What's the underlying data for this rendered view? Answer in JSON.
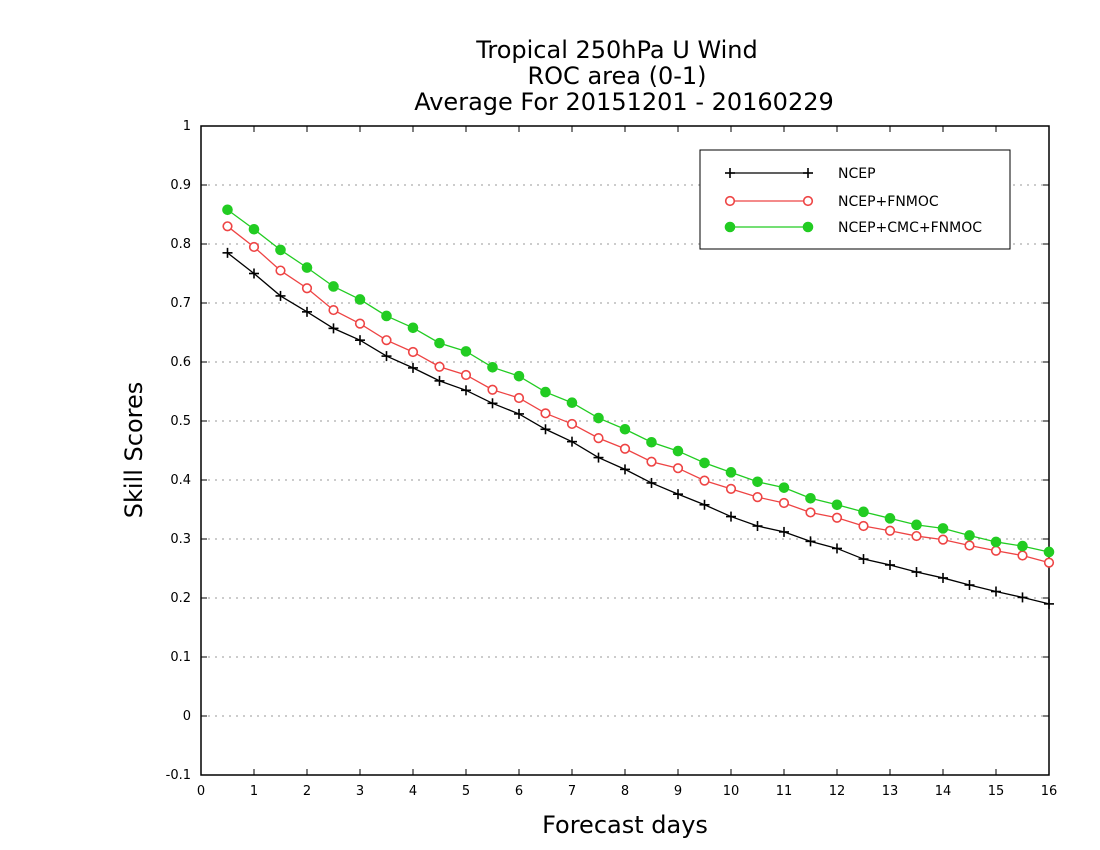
{
  "chart_data": {
    "type": "line",
    "title": [
      "Tropical 250hPa U Wind",
      "ROC area (0-1)",
      "Average For 20151201 - 20160229"
    ],
    "xlabel": "Forecast days",
    "ylabel": "Skill Scores",
    "xlim": [
      0,
      16
    ],
    "ylim": [
      -0.1,
      1
    ],
    "xticks": [
      "0",
      "1",
      "2",
      "3",
      "4",
      "5",
      "6",
      "7",
      "8",
      "9",
      "10",
      "11",
      "12",
      "13",
      "14",
      "15",
      "16"
    ],
    "yticks": [
      "-0.1",
      "0",
      "0.1",
      "0.2",
      "0.3",
      "0.4",
      "0.5",
      "0.6",
      "0.7",
      "0.8",
      "0.9",
      "1"
    ],
    "grid": "horizontal dotted",
    "legend_position": "top-right",
    "x": [
      0.5,
      1,
      1.5,
      2,
      2.5,
      3,
      3.5,
      4,
      4.5,
      5,
      5.5,
      6,
      6.5,
      7,
      7.5,
      8,
      8.5,
      9,
      9.5,
      10,
      10.5,
      11,
      11.5,
      12,
      12.5,
      13,
      13.5,
      14,
      14.5,
      15,
      15.5,
      16
    ],
    "series": [
      {
        "name": "NCEP",
        "color": "#000000",
        "marker": "plus",
        "values": [
          0.785,
          0.75,
          0.712,
          0.685,
          0.657,
          0.637,
          0.61,
          0.59,
          0.568,
          0.552,
          0.53,
          0.512,
          0.486,
          0.465,
          0.438,
          0.418,
          0.395,
          0.376,
          0.358,
          0.338,
          0.322,
          0.312,
          0.296,
          0.284,
          0.266,
          0.256,
          0.244,
          0.234,
          0.222,
          0.211,
          0.201,
          0.19
        ]
      },
      {
        "name": "NCEP+FNMOC",
        "color": "#ee4444",
        "marker": "open-circle",
        "values": [
          0.83,
          0.795,
          0.755,
          0.725,
          0.688,
          0.665,
          0.637,
          0.617,
          0.592,
          0.578,
          0.553,
          0.539,
          0.513,
          0.495,
          0.471,
          0.453,
          0.431,
          0.42,
          0.399,
          0.385,
          0.371,
          0.361,
          0.345,
          0.336,
          0.322,
          0.314,
          0.305,
          0.299,
          0.289,
          0.28,
          0.272,
          0.26
        ]
      },
      {
        "name": "NCEP+CMC+FNMOC",
        "color": "#22cc22",
        "marker": "filled-circle",
        "values": [
          0.858,
          0.825,
          0.79,
          0.76,
          0.728,
          0.706,
          0.678,
          0.658,
          0.632,
          0.618,
          0.591,
          0.576,
          0.549,
          0.531,
          0.505,
          0.486,
          0.464,
          0.449,
          0.429,
          0.413,
          0.397,
          0.387,
          0.369,
          0.358,
          0.346,
          0.335,
          0.324,
          0.318,
          0.306,
          0.295,
          0.288,
          0.278
        ]
      }
    ]
  }
}
